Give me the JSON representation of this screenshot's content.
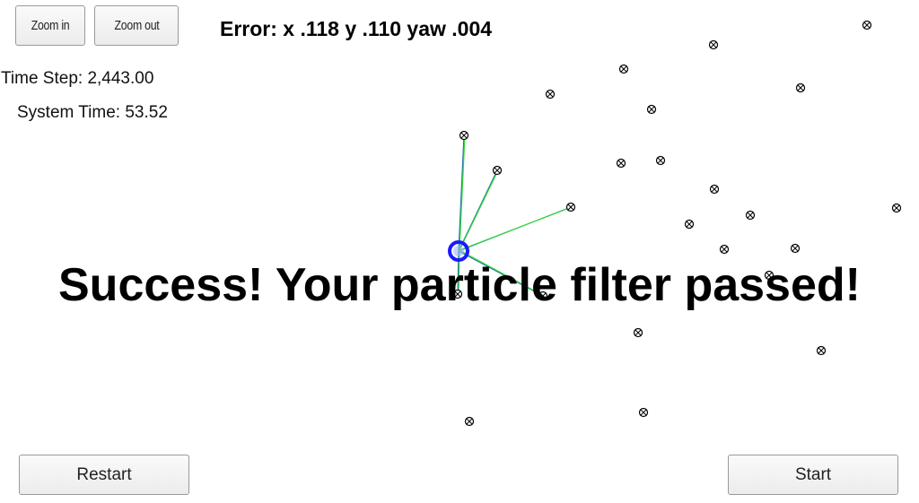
{
  "controls": {
    "zoom_in_label": "Zoom in",
    "zoom_out_label": "Zoom out",
    "restart_label": "Restart",
    "start_label": "Start"
  },
  "status": {
    "error_text": "Error: x .118 y .110 yaw .004",
    "time_step": "Time Step: 2,443.00",
    "system_time": "System Time: 53.52"
  },
  "message": "Success! Your particle filter passed!",
  "colors": {
    "vehicle": "#1a1aff",
    "observation_line": "#33dd33",
    "ground_truth_line": "#1e6fa8",
    "landmark": "#000000"
  }
}
